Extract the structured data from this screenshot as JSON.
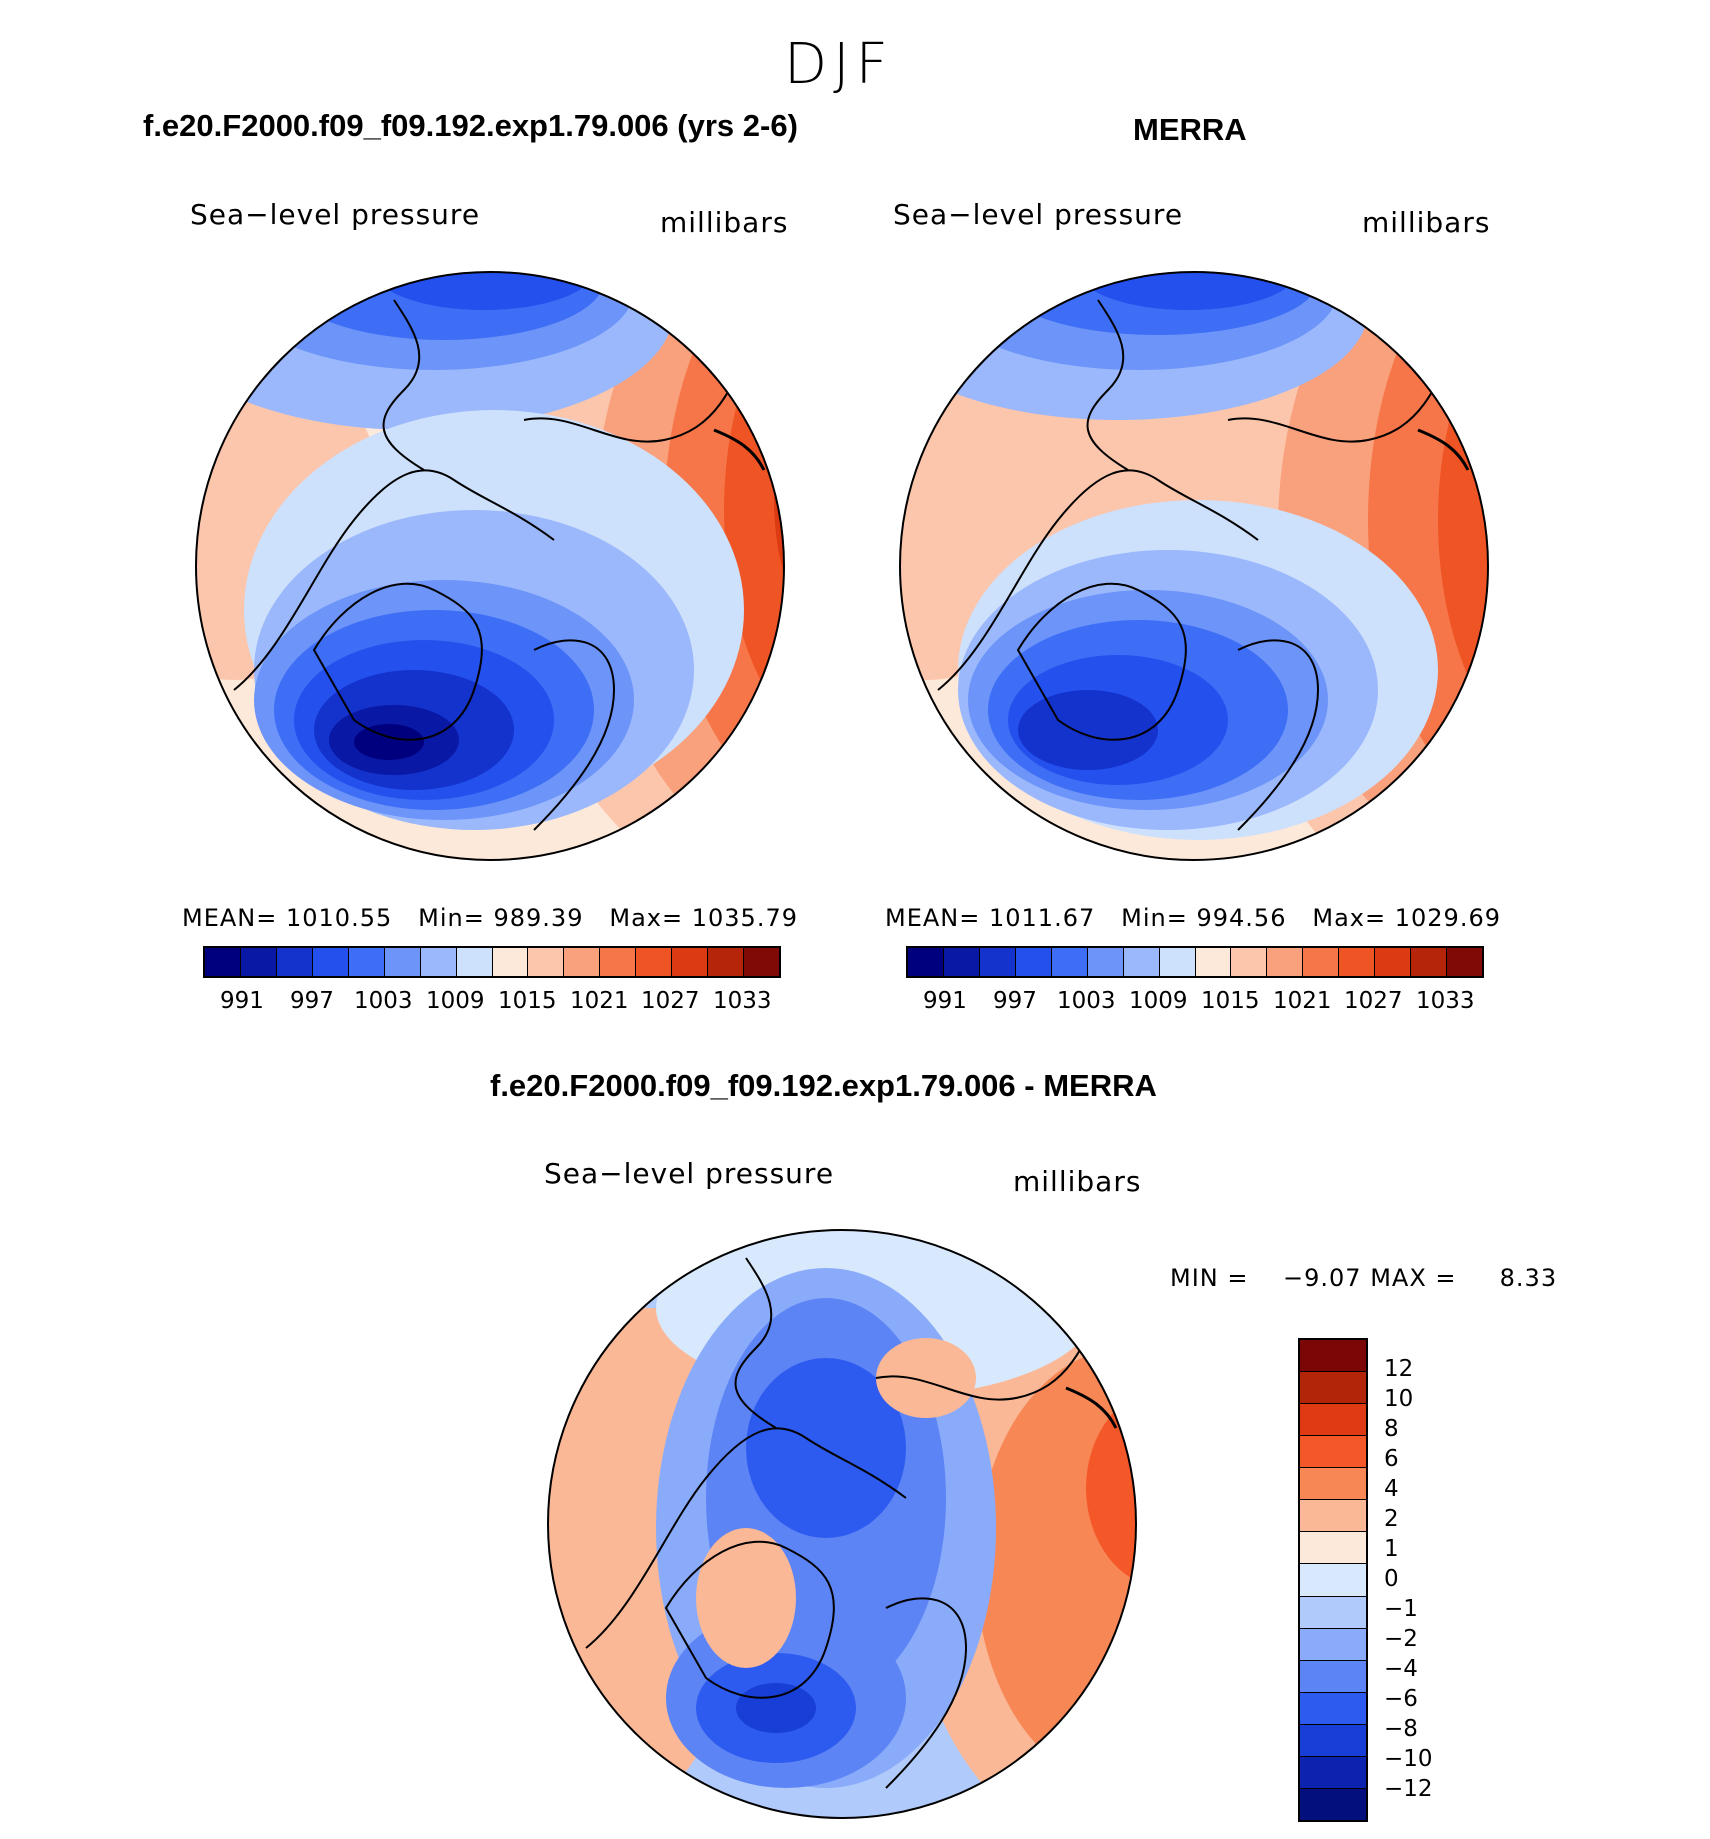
{
  "season": "DJF",
  "panels": {
    "model": {
      "title": "f.e20.F2000.f09_f09.192.exp1.79.006 (yrs 2-6)",
      "variable": "Sea−level pressure",
      "units": "millibars",
      "stats": {
        "mean_label": "MEAN=",
        "mean": "1010.55",
        "min_label": "Min=",
        "min": "989.39",
        "max_label": "Max=",
        "max": "1035.79"
      }
    },
    "obs": {
      "title": "MERRA",
      "variable": "Sea−level pressure",
      "units": "millibars",
      "stats": {
        "mean_label": "MEAN=",
        "mean": "1011.67",
        "min_label": "Min=",
        "min": "994.56",
        "max_label": "Max=",
        "max": "1029.69"
      }
    },
    "diff": {
      "title": "f.e20.F2000.f09_f09.192.exp1.79.006 - MERRA",
      "variable": "Sea−level pressure",
      "units": "millibars",
      "stats": {
        "min_label": "MIN =",
        "min": "−9.07",
        "max_label": "MAX =",
        "max": "8.33"
      }
    }
  },
  "colorbars": {
    "absolute": {
      "colors": [
        "#00007f",
        "#0a18a6",
        "#1432cc",
        "#2450ee",
        "#3d6ef5",
        "#6d94f8",
        "#9ab8fb",
        "#cde0fc",
        "#fde9da",
        "#fcc6ad",
        "#f9a07c",
        "#f67649",
        "#ef5424",
        "#db3a12",
        "#b52509",
        "#800a05"
      ],
      "tick_labels": [
        "991",
        "997",
        "1003",
        "1009",
        "1015",
        "1021",
        "1027",
        "1033"
      ]
    },
    "difference": {
      "colors_top_to_bottom": [
        "#7a0706",
        "#b22509",
        "#df3a13",
        "#f45829",
        "#f88756",
        "#fab896",
        "#fde9da",
        "#d9e9fd",
        "#b0cafb",
        "#8aabfa",
        "#5d84f5",
        "#2e5bef",
        "#173ed6",
        "#0b23ae",
        "#020f7d"
      ],
      "tick_labels": [
        "12",
        "10",
        "8",
        "6",
        "4",
        "2",
        "1",
        "0",
        "−1",
        "−2",
        "−4",
        "−6",
        "−8",
        "−10",
        "−12"
      ]
    }
  }
}
